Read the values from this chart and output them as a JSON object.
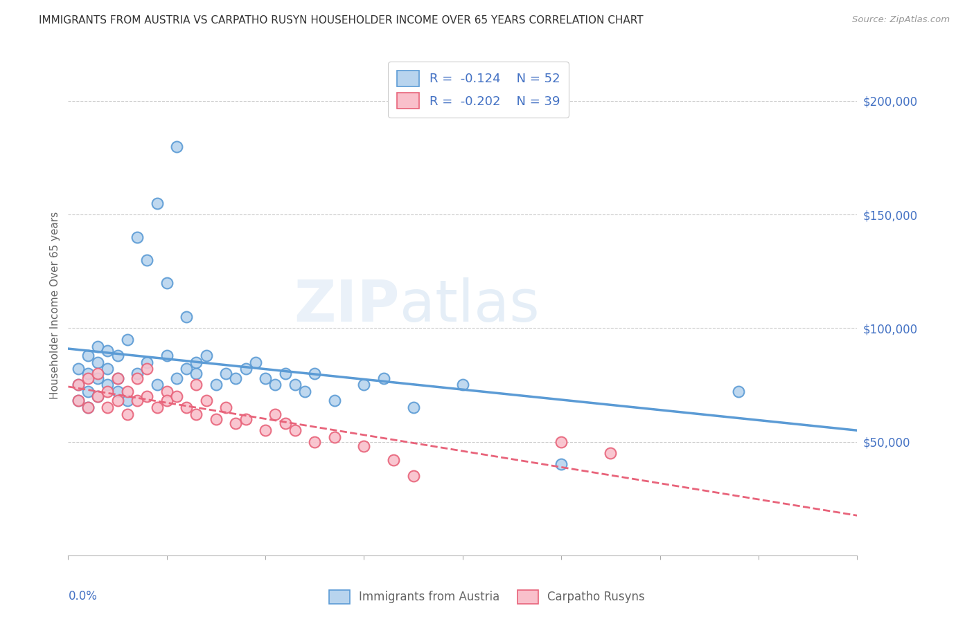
{
  "title": "IMMIGRANTS FROM AUSTRIA VS CARPATHO RUSYN HOUSEHOLDER INCOME OVER 65 YEARS CORRELATION CHART",
  "source": "Source: ZipAtlas.com",
  "ylabel": "Householder Income Over 65 years",
  "xlim": [
    0.0,
    0.08
  ],
  "ylim": [
    0,
    220000
  ],
  "blue_color": "#b8d4ee",
  "pink_color": "#f9c0cb",
  "blue_line_color": "#5b9bd5",
  "pink_line_color": "#e8637a",
  "legend_text_color": "#4472c4",
  "title_color": "#333333",
  "austria_x": [
    0.001,
    0.001,
    0.001,
    0.002,
    0.002,
    0.002,
    0.002,
    0.003,
    0.003,
    0.003,
    0.003,
    0.004,
    0.004,
    0.004,
    0.005,
    0.005,
    0.005,
    0.006,
    0.006,
    0.007,
    0.007,
    0.008,
    0.008,
    0.009,
    0.009,
    0.01,
    0.01,
    0.011,
    0.011,
    0.012,
    0.012,
    0.013,
    0.013,
    0.014,
    0.015,
    0.016,
    0.017,
    0.018,
    0.019,
    0.02,
    0.021,
    0.022,
    0.023,
    0.024,
    0.025,
    0.027,
    0.03,
    0.032,
    0.035,
    0.04,
    0.05,
    0.068
  ],
  "austria_y": [
    82000,
    75000,
    68000,
    88000,
    80000,
    72000,
    65000,
    85000,
    78000,
    92000,
    70000,
    90000,
    75000,
    82000,
    88000,
    72000,
    78000,
    95000,
    68000,
    140000,
    80000,
    130000,
    85000,
    155000,
    75000,
    120000,
    88000,
    180000,
    78000,
    105000,
    82000,
    80000,
    85000,
    88000,
    75000,
    80000,
    78000,
    82000,
    85000,
    78000,
    75000,
    80000,
    75000,
    72000,
    80000,
    68000,
    75000,
    78000,
    65000,
    75000,
    40000,
    72000
  ],
  "carpatho_x": [
    0.001,
    0.001,
    0.002,
    0.002,
    0.003,
    0.003,
    0.004,
    0.004,
    0.005,
    0.005,
    0.006,
    0.006,
    0.007,
    0.007,
    0.008,
    0.008,
    0.009,
    0.01,
    0.01,
    0.011,
    0.012,
    0.013,
    0.013,
    0.014,
    0.015,
    0.016,
    0.017,
    0.018,
    0.02,
    0.021,
    0.022,
    0.023,
    0.025,
    0.027,
    0.03,
    0.033,
    0.035,
    0.05,
    0.055
  ],
  "carpatho_y": [
    75000,
    68000,
    78000,
    65000,
    80000,
    70000,
    72000,
    65000,
    78000,
    68000,
    72000,
    62000,
    78000,
    68000,
    82000,
    70000,
    65000,
    72000,
    68000,
    70000,
    65000,
    75000,
    62000,
    68000,
    60000,
    65000,
    58000,
    60000,
    55000,
    62000,
    58000,
    55000,
    50000,
    52000,
    48000,
    42000,
    35000,
    50000,
    45000
  ]
}
